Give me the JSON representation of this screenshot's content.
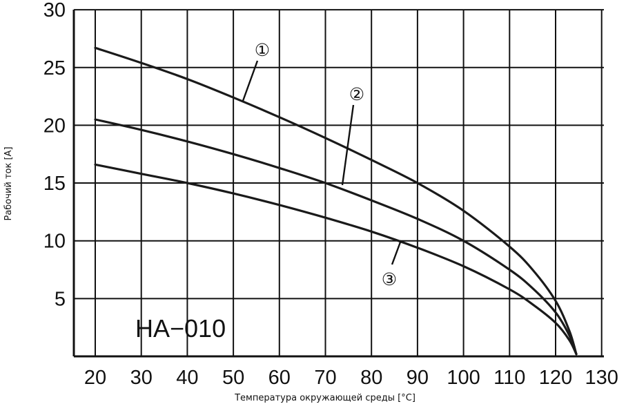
{
  "chart_data": {
    "type": "line",
    "title": "",
    "xlabel": "Температура окружающей среды [°C]",
    "ylabel": "Рабочий ток [A]",
    "xlim": [
      20,
      130
    ],
    "ylim": [
      0,
      30
    ],
    "x_ticks": [
      "20",
      "30",
      "40",
      "50",
      "60",
      "70",
      "80",
      "90",
      "100",
      "110",
      "120",
      "130"
    ],
    "y_ticks": [
      "5",
      "10",
      "15",
      "20",
      "25",
      "30"
    ],
    "grid": true,
    "model_label": "HA−010",
    "series": [
      {
        "marker": "①",
        "x": [
          20,
          30,
          40,
          50,
          60,
          70,
          80,
          90,
          100,
          110,
          115,
          120,
          123,
          124.5
        ],
        "y": [
          26.7,
          25.4,
          24.0,
          22.4,
          20.7,
          18.9,
          17.0,
          15.0,
          12.6,
          9.5,
          7.5,
          4.8,
          2.2,
          0.2
        ]
      },
      {
        "marker": "②",
        "x": [
          20,
          30,
          40,
          50,
          60,
          70,
          80,
          90,
          100,
          110,
          115,
          120,
          123,
          124.5
        ],
        "y": [
          20.5,
          19.6,
          18.6,
          17.5,
          16.3,
          15.0,
          13.5,
          11.9,
          10.0,
          7.5,
          5.9,
          3.8,
          1.8,
          0.2
        ]
      },
      {
        "marker": "③",
        "x": [
          20,
          30,
          40,
          50,
          60,
          70,
          80,
          90,
          100,
          110,
          115,
          120,
          123,
          124.5
        ],
        "y": [
          16.6,
          15.8,
          15.0,
          14.1,
          13.1,
          12.0,
          10.8,
          9.4,
          7.8,
          5.8,
          4.5,
          2.9,
          1.4,
          0.2
        ]
      }
    ]
  }
}
